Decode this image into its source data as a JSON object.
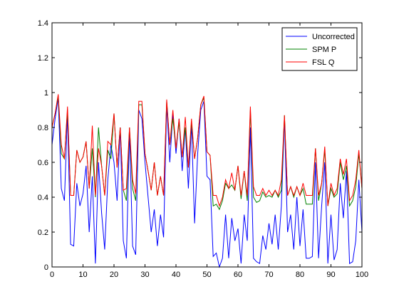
{
  "chart_data": {
    "type": "line",
    "title": "",
    "xlabel": "",
    "ylabel": "",
    "xlim": [
      0,
      100
    ],
    "ylim": [
      0,
      1.4
    ],
    "xticks": [
      0,
      10,
      20,
      30,
      40,
      50,
      60,
      70,
      80,
      90,
      100
    ],
    "xtick_labels": [
      "0",
      "10",
      "20",
      "30",
      "40",
      "50",
      "60",
      "70",
      "80",
      "90",
      "100"
    ],
    "yticks": [
      0,
      0.2,
      0.4,
      0.6,
      0.8,
      1.0,
      1.2,
      1.4
    ],
    "ytick_labels": [
      "0",
      "0.2",
      "0.4",
      "0.6",
      "0.8",
      "1",
      "1.2",
      "1.4"
    ],
    "grid": false,
    "legend_position": "top-right",
    "x": [
      0,
      1,
      2,
      3,
      4,
      5,
      6,
      7,
      8,
      9,
      10,
      11,
      12,
      13,
      14,
      15,
      16,
      17,
      18,
      19,
      20,
      21,
      22,
      23,
      24,
      25,
      26,
      27,
      28,
      29,
      30,
      31,
      32,
      33,
      34,
      35,
      36,
      37,
      38,
      39,
      40,
      41,
      42,
      43,
      44,
      45,
      46,
      47,
      48,
      49,
      50,
      51,
      52,
      53,
      54,
      55,
      56,
      57,
      58,
      59,
      60,
      61,
      62,
      63,
      64,
      65,
      66,
      67,
      68,
      69,
      70,
      71,
      72,
      73,
      74,
      75,
      76,
      77,
      78,
      79,
      80,
      81,
      82,
      83,
      84,
      85,
      86,
      87,
      88,
      89,
      90,
      91,
      92,
      93,
      94,
      95,
      96,
      97,
      98,
      99,
      100
    ],
    "series": [
      {
        "name": "Uncorrected",
        "color": "#0000ff",
        "values": [
          0.7,
          0.85,
          0.97,
          0.45,
          0.38,
          0.88,
          0.13,
          0.12,
          0.48,
          0.35,
          0.42,
          0.58,
          0.2,
          0.52,
          0.02,
          0.6,
          0.31,
          0.1,
          0.5,
          0.7,
          0.6,
          0.38,
          0.8,
          0.15,
          0.05,
          0.78,
          0.12,
          0.07,
          0.9,
          0.85,
          0.6,
          0.4,
          0.2,
          0.33,
          0.12,
          0.3,
          0.17,
          0.93,
          0.6,
          0.88,
          0.65,
          0.85,
          0.55,
          0.8,
          0.45,
          0.82,
          0.25,
          0.65,
          0.9,
          0.95,
          0.52,
          0.5,
          0.06,
          0.08,
          0.0,
          0.05,
          0.3,
          0.05,
          0.28,
          0.15,
          0.22,
          0.02,
          0.3,
          0.15,
          0.8,
          0.05,
          0.03,
          0.02,
          0.18,
          0.1,
          0.25,
          0.13,
          0.3,
          0.1,
          0.35,
          0.85,
          0.2,
          0.3,
          0.1,
          0.4,
          0.12,
          0.33,
          0.05,
          0.05,
          0.06,
          0.6,
          0.05,
          0.35,
          0.6,
          0.02,
          0.3,
          0.04,
          0.1,
          0.48,
          0.28,
          0.55,
          0.02,
          0.03,
          0.15,
          0.5,
          0.2
        ]
      },
      {
        "name": "SPM P",
        "color": "#008000",
        "values": [
          0.8,
          0.88,
          0.98,
          0.65,
          0.62,
          0.9,
          0.41,
          0.41,
          0.67,
          0.6,
          0.63,
          0.72,
          0.45,
          0.68,
          0.4,
          0.8,
          0.58,
          0.41,
          0.67,
          0.62,
          0.88,
          0.57,
          0.8,
          0.44,
          0.38,
          0.8,
          0.45,
          0.38,
          0.93,
          0.93,
          0.65,
          0.55,
          0.44,
          0.6,
          0.41,
          0.52,
          0.41,
          0.95,
          0.7,
          0.85,
          0.68,
          0.83,
          0.63,
          0.8,
          0.57,
          0.83,
          0.62,
          0.74,
          0.93,
          0.97,
          0.66,
          0.64,
          0.35,
          0.36,
          0.33,
          0.38,
          0.48,
          0.45,
          0.47,
          0.44,
          0.58,
          0.39,
          0.55,
          0.38,
          0.9,
          0.4,
          0.37,
          0.38,
          0.43,
          0.4,
          0.41,
          0.4,
          0.44,
          0.4,
          0.44,
          0.87,
          0.41,
          0.46,
          0.4,
          0.46,
          0.41,
          0.45,
          0.36,
          0.36,
          0.36,
          0.68,
          0.38,
          0.48,
          0.67,
          0.35,
          0.45,
          0.4,
          0.42,
          0.6,
          0.5,
          0.58,
          0.35,
          0.38,
          0.46,
          0.65,
          0.45
        ]
      },
      {
        "name": "FSL Q",
        "color": "#ff0000",
        "values": [
          0.8,
          0.88,
          0.99,
          0.7,
          0.62,
          0.92,
          0.41,
          0.41,
          0.67,
          0.6,
          0.63,
          0.72,
          0.45,
          0.81,
          0.41,
          0.68,
          0.58,
          0.41,
          0.72,
          0.7,
          0.88,
          0.57,
          0.8,
          0.44,
          0.45,
          0.8,
          0.5,
          0.42,
          0.95,
          0.95,
          0.65,
          0.55,
          0.44,
          0.6,
          0.41,
          0.52,
          0.41,
          0.96,
          0.7,
          0.9,
          0.68,
          0.85,
          0.63,
          0.86,
          0.57,
          0.85,
          0.62,
          0.74,
          0.93,
          0.98,
          0.66,
          0.64,
          0.41,
          0.41,
          0.35,
          0.4,
          0.5,
          0.45,
          0.54,
          0.44,
          0.58,
          0.41,
          0.55,
          0.41,
          0.92,
          0.46,
          0.41,
          0.41,
          0.45,
          0.41,
          0.44,
          0.41,
          0.44,
          0.41,
          0.5,
          0.87,
          0.41,
          0.46,
          0.41,
          0.46,
          0.41,
          0.48,
          0.41,
          0.41,
          0.41,
          0.68,
          0.41,
          0.48,
          0.69,
          0.35,
          0.48,
          0.41,
          0.45,
          0.62,
          0.53,
          0.62,
          0.38,
          0.41,
          0.5,
          0.67,
          0.45
        ]
      }
    ]
  }
}
